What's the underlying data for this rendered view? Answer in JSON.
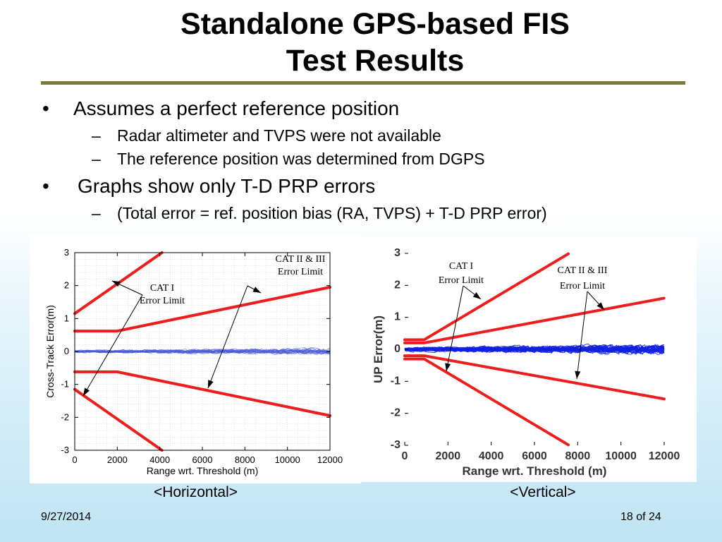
{
  "slide": {
    "title_line1": "Standalone GPS-based FIS",
    "title_line2": "Test Results",
    "bullets": [
      {
        "text": "Assumes a perfect reference position",
        "subs": [
          "Radar altimeter and TVPS were not available",
          "The reference position was determined from DGPS"
        ]
      },
      {
        "text": "Graphs show only T-D PRP errors",
        "subs": [
          "(Total error = ref. position bias (RA, TVPS) + T-D PRP error)"
        ]
      }
    ],
    "footer_date": "9/27/2014",
    "footer_page": "18 of 24"
  },
  "chart_data": [
    {
      "type": "line",
      "caption": "<Horizontal>",
      "xlabel": "Range wrt. Threshold (m)",
      "ylabel": "Cross-Track Error(m)",
      "xlim": [
        0,
        12000
      ],
      "ylim": [
        -3,
        3
      ],
      "xticks": [
        0,
        2000,
        4000,
        6000,
        8000,
        10000,
        12000
      ],
      "yticks": [
        -3,
        -2,
        -1,
        0,
        1,
        2,
        3
      ],
      "grid": true,
      "annotations": [
        {
          "text": [
            "CAT II & III",
            "Error Limit"
          ]
        },
        {
          "text": [
            "CAT I",
            "Error Limit"
          ]
        }
      ],
      "series": [
        {
          "x": [
            0,
            4100
          ],
          "y": [
            1.15,
            3.0
          ]
        },
        {
          "x": [
            0,
            4100
          ],
          "y": [
            -1.15,
            -3.0
          ]
        },
        {
          "x": [
            0,
            2000,
            12000
          ],
          "y": [
            0.62,
            0.62,
            1.95
          ]
        },
        {
          "x": [
            0,
            2000,
            12000
          ],
          "y": [
            -0.62,
            -0.62,
            -1.95
          ]
        },
        {
          "x": [
            0,
            12000
          ],
          "y": [
            0,
            0
          ]
        }
      ]
    },
    {
      "type": "line",
      "caption": "<Vertical>",
      "xlabel": "Range wrt. Threshold (m)",
      "ylabel": "UP Error(m)",
      "xlim": [
        0,
        12000
      ],
      "ylim": [
        -3,
        3
      ],
      "xticks": [
        0,
        2000,
        4000,
        6000,
        8000,
        10000,
        12000
      ],
      "yticks": [
        -3,
        -2,
        -1,
        0,
        1,
        2,
        3
      ],
      "grid": false,
      "annotations": [
        {
          "text": [
            "CAT I",
            "Error Limit"
          ]
        },
        {
          "text": [
            "CAT II & III",
            "Error Limit"
          ]
        }
      ],
      "series": [
        {
          "x": [
            0,
            900,
            7600
          ],
          "y": [
            0.3,
            0.3,
            3.0
          ]
        },
        {
          "x": [
            0,
            900,
            7600
          ],
          "y": [
            -0.3,
            -0.3,
            -3.0
          ]
        },
        {
          "x": [
            0,
            900,
            12000
          ],
          "y": [
            0.2,
            0.2,
            1.6
          ]
        },
        {
          "x": [
            0,
            900,
            12000
          ],
          "y": [
            -0.2,
            -0.2,
            -1.55
          ]
        },
        {
          "x": [
            0,
            12000
          ],
          "y": [
            0,
            0
          ]
        }
      ]
    }
  ]
}
